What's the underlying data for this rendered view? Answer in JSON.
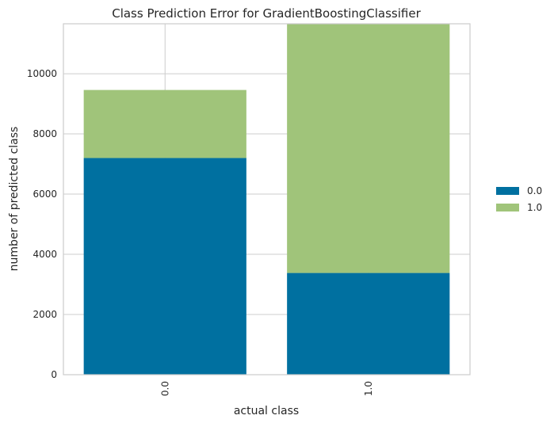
{
  "chart_data": {
    "type": "bar",
    "stacked": true,
    "title": "Class Prediction Error for GradientBoostingClassifier",
    "xlabel": "actual class",
    "ylabel": "number of predicted class",
    "categories": [
      "0.0",
      "1.0"
    ],
    "series": [
      {
        "name": "0.0",
        "values": [
          7200,
          3380
        ],
        "color": "#0070a0"
      },
      {
        "name": "1.0",
        "values": [
          2260,
          8280
        ],
        "color": "#a0c47a"
      }
    ],
    "ylim": [
      0,
      11660
    ],
    "yticks": [
      0,
      2000,
      4000,
      6000,
      8000,
      10000
    ],
    "grid": true,
    "legend_position": "right"
  }
}
